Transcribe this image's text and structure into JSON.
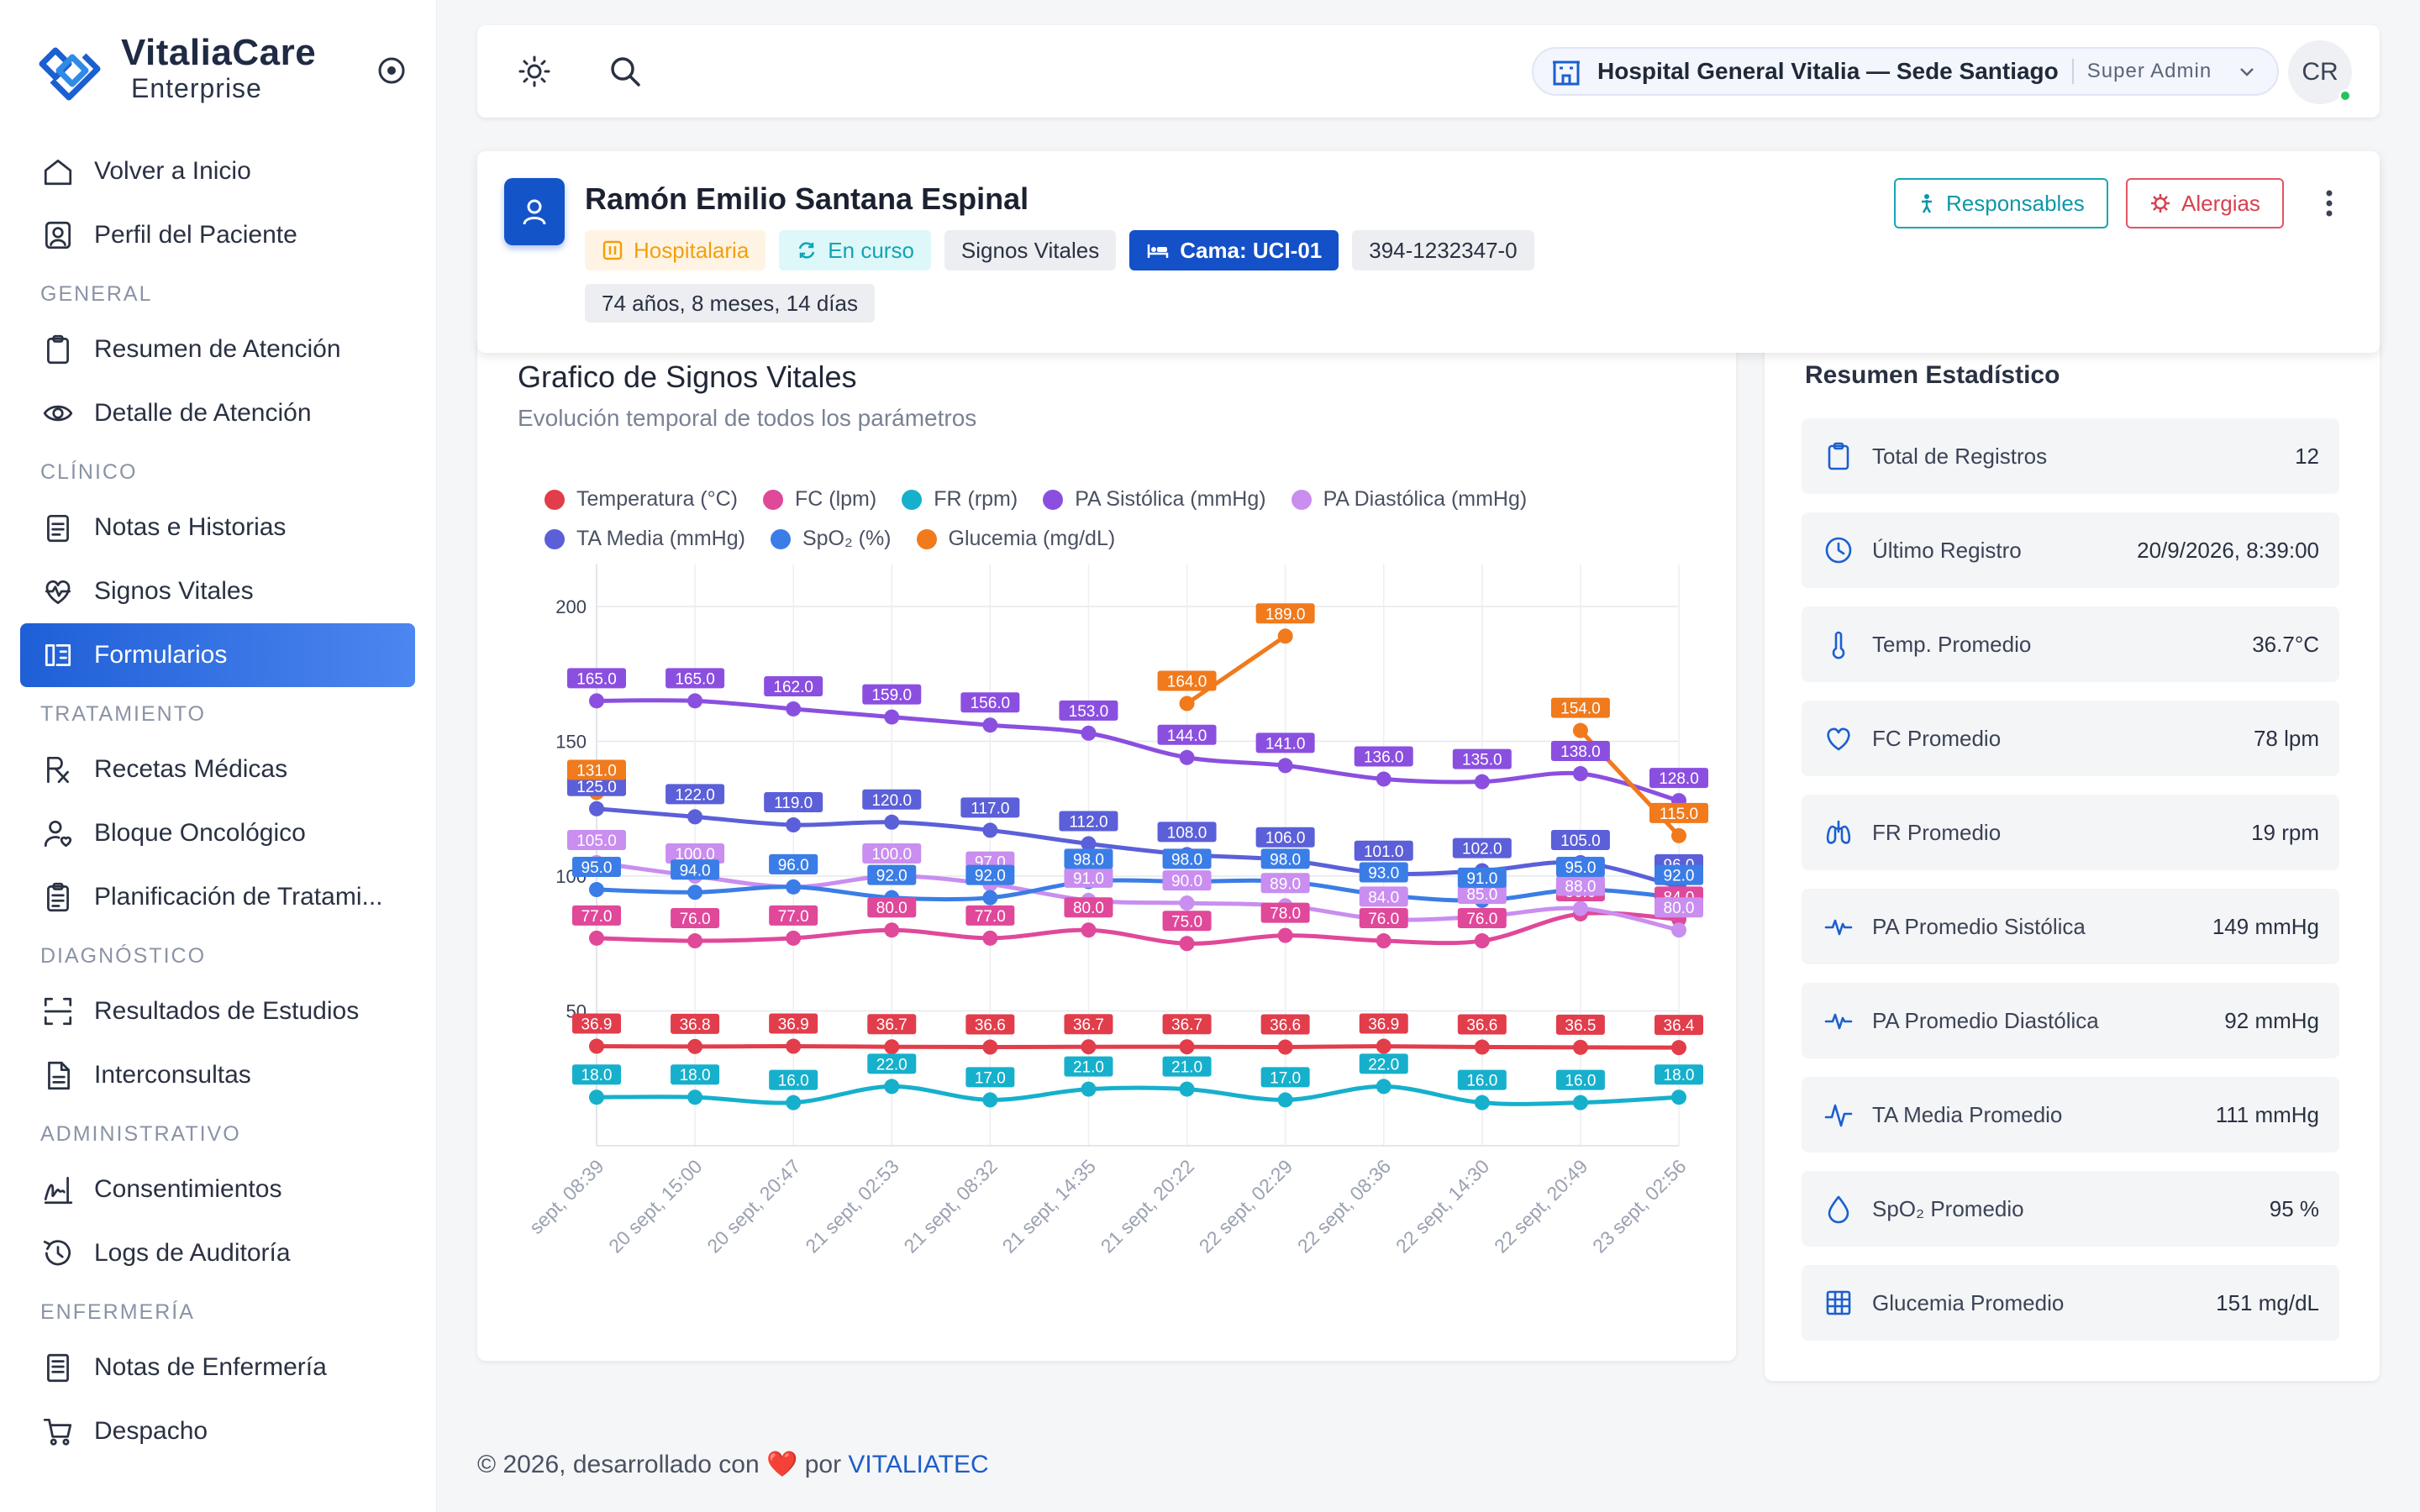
{
  "brand": {
    "name": "VitaliaCare",
    "subtitle": "Enterprise"
  },
  "sidebar": {
    "items": [
      {
        "type": "item",
        "label": "Volver a Inicio",
        "icon": "home-icon"
      },
      {
        "type": "item",
        "label": "Perfil del Paciente",
        "icon": "user-profile-icon"
      },
      {
        "type": "section",
        "label": "GENERAL"
      },
      {
        "type": "item",
        "label": "Resumen de Atención",
        "icon": "clipboard-icon"
      },
      {
        "type": "item",
        "label": "Detalle de Atención",
        "icon": "eye-icon"
      },
      {
        "type": "section",
        "label": "CLÍNICO"
      },
      {
        "type": "item",
        "label": "Notas e Historias",
        "icon": "notes-icon"
      },
      {
        "type": "item",
        "label": "Signos Vitales",
        "icon": "heart-pulse-icon"
      },
      {
        "type": "item",
        "label": "Formularios",
        "icon": "forms-icon",
        "active": true
      },
      {
        "type": "section",
        "label": "TRATAMIENTO"
      },
      {
        "type": "item",
        "label": "Recetas Médicas",
        "icon": "prescription-icon"
      },
      {
        "type": "item",
        "label": "Bloque Oncológico",
        "icon": "user-heart-icon"
      },
      {
        "type": "item",
        "label": "Planificación de Tratami...",
        "icon": "clipboard-list-icon"
      },
      {
        "type": "section",
        "label": "DIAGNÓSTICO"
      },
      {
        "type": "item",
        "label": "Resultados de Estudios",
        "icon": "scan-icon"
      },
      {
        "type": "item",
        "label": "Interconsultas",
        "icon": "document-icon"
      },
      {
        "type": "section",
        "label": "ADMINISTRATIVO"
      },
      {
        "type": "item",
        "label": "Consentimientos",
        "icon": "signature-icon"
      },
      {
        "type": "item",
        "label": "Logs de Auditoría",
        "icon": "history-icon"
      },
      {
        "type": "section",
        "label": "ENFERMERÍA"
      },
      {
        "type": "item",
        "label": "Notas de Enfermería",
        "icon": "file-text-icon"
      },
      {
        "type": "item",
        "label": "Despacho",
        "icon": "cart-icon"
      }
    ]
  },
  "topbar": {
    "hospital": "Hospital General Vitalia — Sede Santiago",
    "role": "Super Admin",
    "avatar_initials": "CR"
  },
  "patient": {
    "name": "Ramón Emilio Santana Espinal",
    "badges": {
      "type": "Hospitalaria",
      "status": "En curso",
      "section": "Signos Vitales",
      "bed": "Cama: UCI-01",
      "id": "394-1232347-0"
    },
    "age": "74 años, 8 meses, 14 días",
    "btn_responsables": "Responsables",
    "btn_alergias": "Alergias"
  },
  "chart": {
    "title": "Grafico de Signos Vitales",
    "subtitle": "Evolución temporal de todos los parámetros"
  },
  "chart_data": {
    "type": "line",
    "ylim": [
      0,
      200
    ],
    "yticks": [
      50,
      100,
      150,
      200
    ],
    "grid": true,
    "legend_position": "top",
    "x": [
      "sept, 08:39",
      "20 sept, 15:00",
      "20 sept, 20:47",
      "21 sept, 02:53",
      "21 sept, 08:32",
      "21 sept, 14:35",
      "21 sept, 20:22",
      "22 sept, 02:29",
      "22 sept, 08:36",
      "22 sept, 14:30",
      "22 sept, 20:49",
      "23 sept, 02:56"
    ],
    "series": [
      {
        "name": "Temperatura (°C)",
        "color": "#e23d4b",
        "values": [
          36.9,
          36.8,
          36.9,
          36.7,
          36.6,
          36.7,
          36.7,
          36.6,
          36.9,
          36.6,
          36.5,
          36.4
        ]
      },
      {
        "name": "FC (lpm)",
        "color": "#e0489a",
        "values": [
          77.0,
          76.0,
          77.0,
          80.0,
          77.0,
          80.0,
          75.0,
          78.0,
          76.0,
          76.0,
          86.0,
          84.0
        ]
      },
      {
        "name": "FR (rpm)",
        "color": "#16b0cc",
        "values": [
          18.0,
          18.0,
          16.0,
          22.0,
          17.0,
          21.0,
          21.0,
          17.0,
          22.0,
          16.0,
          16.0,
          18.0
        ]
      },
      {
        "name": "PA Sistólica (mmHg)",
        "color": "#8b4fe0",
        "values": [
          165.0,
          165.0,
          162.0,
          159.0,
          156.0,
          153.0,
          144.0,
          141.0,
          136.0,
          135.0,
          138.0,
          128.0
        ]
      },
      {
        "name": "PA Diastólica (mmHg)",
        "color": "#c98ef0",
        "values": [
          105.0,
          100.0,
          96.0,
          100.0,
          97.0,
          91.0,
          90.0,
          89.0,
          84.0,
          85.0,
          88.0,
          80.0
        ]
      },
      {
        "name": "TA Media (mmHg)",
        "color": "#5b5fd8",
        "values": [
          125.0,
          122.0,
          119.0,
          120.0,
          117.0,
          112.0,
          108.0,
          106.0,
          101.0,
          102.0,
          105.0,
          96.0
        ]
      },
      {
        "name": "SpO₂ (%)",
        "color": "#3b7de6",
        "values": [
          95.0,
          94.0,
          96.0,
          92.0,
          92.0,
          98.0,
          98.0,
          98.0,
          93.0,
          91.0,
          95.0,
          92.0
        ]
      },
      {
        "name": "Glucemia (mg/dL)",
        "color": "#f07a1c",
        "values": [
          131.0,
          null,
          null,
          null,
          null,
          null,
          164.0,
          189.0,
          null,
          null,
          154.0,
          115.0
        ]
      }
    ]
  },
  "stats": {
    "title": "Resumen Estadístico",
    "rows": [
      {
        "label": "Total de Registros",
        "value": "12",
        "icon": "clipboard-icon"
      },
      {
        "label": "Último Registro",
        "value": "20/9/2026, 8:39:00",
        "icon": "clock-icon"
      },
      {
        "label": "Temp. Promedio",
        "value": "36.7°C",
        "icon": "thermometer-icon"
      },
      {
        "label": "FC Promedio",
        "value": "78 lpm",
        "icon": "heart-icon"
      },
      {
        "label": "FR Promedio",
        "value": "19 rpm",
        "icon": "lungs-icon"
      },
      {
        "label": "PA Promedio Sistólica",
        "value": "149 mmHg",
        "icon": "pulse-icon"
      },
      {
        "label": "PA Promedio Diastólica",
        "value": "92 mmHg",
        "icon": "pulse-icon"
      },
      {
        "label": "TA Media Promedio",
        "value": "111 mmHg",
        "icon": "activity-icon"
      },
      {
        "label": "SpO₂ Promedio",
        "value": "95 %",
        "icon": "drop-icon"
      },
      {
        "label": "Glucemia Promedio",
        "value": "151 mg/dL",
        "icon": "grid-icon"
      }
    ]
  },
  "footer": {
    "text": "© 2026, desarrollado con",
    "heart": "❤️",
    "by": "por",
    "link": "VITALIATEC"
  },
  "colors": {
    "primary": "#1f5fd6",
    "teal": "#14a6b8",
    "danger": "#e25563",
    "warning": "#f59e0b"
  }
}
